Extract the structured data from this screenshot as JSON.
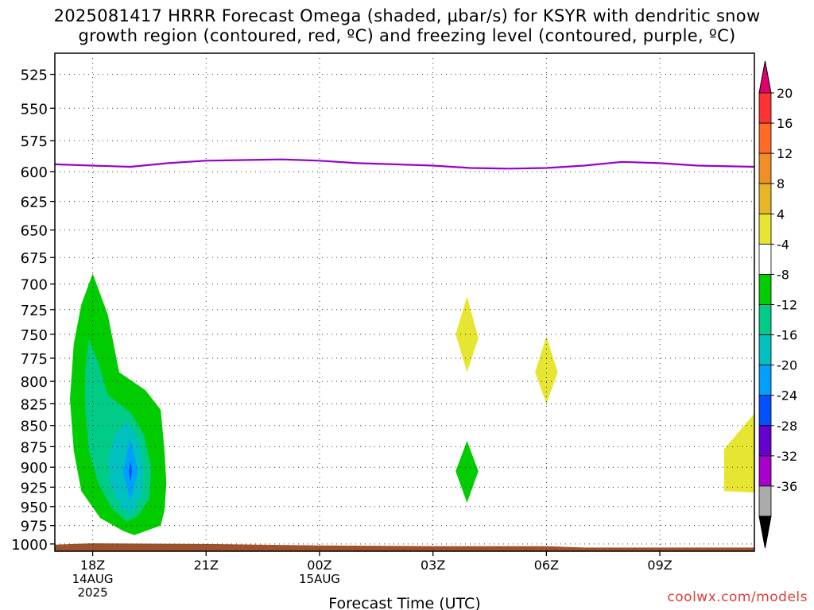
{
  "title_lines": [
    "2025081417 HRRR Forecast Omega (shaded, μbar/s) for KSYR with dendritic snow",
    "growth region (contoured, red, ºC) and freezing level (contoured, purple, ºC)"
  ],
  "credit": "coolwx.com/models",
  "chart_data": {
    "type": "time-height cross section",
    "xlabel": "Forecast Time (UTC)",
    "x_range_hours_after_18Z": [
      -1,
      17.5
    ],
    "x_ticks": [
      {
        "hour": 0,
        "lines": [
          "18Z",
          "14AUG",
          "2025"
        ]
      },
      {
        "hour": 3,
        "lines": [
          "21Z"
        ]
      },
      {
        "hour": 6,
        "lines": [
          "00Z",
          "15AUG"
        ]
      },
      {
        "hour": 9,
        "lines": [
          "03Z"
        ]
      },
      {
        "hour": 12,
        "lines": [
          "06Z"
        ]
      },
      {
        "hour": 15,
        "lines": [
          "09Z"
        ]
      }
    ],
    "y_axis": {
      "unit": "hPa",
      "scale": "log",
      "inverted": true,
      "range": [
        510,
        1010
      ],
      "ticks": [
        525,
        550,
        575,
        600,
        625,
        650,
        675,
        700,
        725,
        750,
        775,
        800,
        825,
        850,
        875,
        900,
        925,
        950,
        975,
        1000
      ]
    },
    "grid": true,
    "freezing_level": {
      "color": "#9900cc",
      "points": [
        [
          -1,
          594
        ],
        [
          0,
          595
        ],
        [
          1,
          596
        ],
        [
          2,
          593
        ],
        [
          3,
          591
        ],
        [
          4,
          590.5
        ],
        [
          5,
          590
        ],
        [
          6,
          591
        ],
        [
          7,
          593
        ],
        [
          8,
          594
        ],
        [
          9,
          595
        ],
        [
          10,
          597
        ],
        [
          11,
          597.5
        ],
        [
          12,
          597
        ],
        [
          13,
          595
        ],
        [
          14,
          592
        ],
        [
          15,
          593
        ],
        [
          16,
          595
        ],
        [
          17.5,
          596
        ]
      ]
    },
    "surface": {
      "color": "#a0522d",
      "points": [
        [
          -1,
          1001
        ],
        [
          0,
          999
        ],
        [
          3,
          1000
        ],
        [
          6,
          1002
        ],
        [
          9,
          1003
        ],
        [
          12,
          1003
        ],
        [
          13,
          1005
        ],
        [
          17.5,
          1005
        ]
      ]
    },
    "omega_regions": [
      {
        "level": -4,
        "color": "#00cc00",
        "points": [
          [
            0.0,
            690
          ],
          [
            0.4,
            730
          ],
          [
            0.7,
            790
          ],
          [
            1.4,
            810
          ],
          [
            1.8,
            832
          ],
          [
            1.9,
            880
          ],
          [
            1.95,
            920
          ],
          [
            1.9,
            955
          ],
          [
            1.8,
            975
          ],
          [
            1.1,
            988
          ],
          [
            0.8,
            982
          ],
          [
            0.2,
            965
          ],
          [
            -0.3,
            930
          ],
          [
            -0.5,
            880
          ],
          [
            -0.6,
            820
          ],
          [
            -0.5,
            760
          ],
          [
            -0.3,
            720
          ]
        ]
      },
      {
        "level": -8,
        "color": "#00cc88",
        "points": [
          [
            -0.1,
            755
          ],
          [
            0.15,
            780
          ],
          [
            0.4,
            815
          ],
          [
            1.0,
            835
          ],
          [
            1.35,
            860
          ],
          [
            1.55,
            900
          ],
          [
            1.5,
            940
          ],
          [
            1.2,
            962
          ],
          [
            0.9,
            970
          ],
          [
            0.5,
            952
          ],
          [
            0.15,
            920
          ],
          [
            -0.1,
            880
          ],
          [
            -0.2,
            830
          ],
          [
            -0.2,
            790
          ]
        ]
      },
      {
        "level": -12,
        "color": "#00c0c0",
        "points": [
          [
            0.9,
            845
          ],
          [
            1.25,
            870
          ],
          [
            1.35,
            900
          ],
          [
            1.3,
            935
          ],
          [
            1.0,
            960
          ],
          [
            0.75,
            950
          ],
          [
            0.45,
            920
          ],
          [
            0.42,
            885
          ],
          [
            0.6,
            860
          ]
        ]
      },
      {
        "level": -16,
        "color": "#00a0ff",
        "points": [
          [
            1.0,
            865
          ],
          [
            1.2,
            905
          ],
          [
            1.0,
            942
          ],
          [
            0.8,
            905
          ]
        ]
      },
      {
        "level": -20,
        "color": "#0050ff",
        "points": [
          [
            1.0,
            893
          ],
          [
            1.04,
            905
          ],
          [
            1.0,
            918
          ],
          [
            0.96,
            905
          ]
        ]
      },
      {
        "level": -4,
        "color": "#00cc00",
        "points": [
          [
            9.9,
            868
          ],
          [
            10.2,
            905
          ],
          [
            9.9,
            945
          ],
          [
            9.6,
            905
          ]
        ]
      },
      {
        "level": 4,
        "color": "#e6e632",
        "points": [
          [
            9.9,
            712
          ],
          [
            10.2,
            754
          ],
          [
            9.9,
            790
          ],
          [
            9.6,
            750
          ]
        ]
      },
      {
        "level": 4,
        "color": "#e6e632",
        "points": [
          [
            12.0,
            752
          ],
          [
            12.3,
            790
          ],
          [
            12.0,
            825
          ],
          [
            11.7,
            790
          ]
        ]
      },
      {
        "level": 4,
        "color": "#e6e632",
        "points": [
          [
            16.7,
            878
          ],
          [
            17.5,
            836
          ],
          [
            17.5,
            932
          ],
          [
            16.7,
            930
          ]
        ]
      }
    ],
    "colorbar": {
      "top_arrow_color": "#e0006e",
      "bottom_arrow_color": "#000000",
      "bins": [
        {
          "label": "20",
          "color": "#ff3333"
        },
        {
          "label": "16",
          "color": "#ff6a26"
        },
        {
          "label": "12",
          "color": "#ef8f26"
        },
        {
          "label": "8",
          "color": "#e6b626"
        },
        {
          "label": "4",
          "color": "#e6e632"
        },
        {
          "label": "-4",
          "color": "#ffffff"
        },
        {
          "label": "-8",
          "color": "#00cc00"
        },
        {
          "label": "-12",
          "color": "#00cc88"
        },
        {
          "label": "-16",
          "color": "#00c0c0"
        },
        {
          "label": "-20",
          "color": "#00a0ff"
        },
        {
          "label": "-24",
          "color": "#0050ff"
        },
        {
          "label": "-28",
          "color": "#6600cc"
        },
        {
          "label": "-32",
          "color": "#aa00cc"
        },
        {
          "label": "-36",
          "color": "#aaaaaa"
        }
      ]
    }
  }
}
